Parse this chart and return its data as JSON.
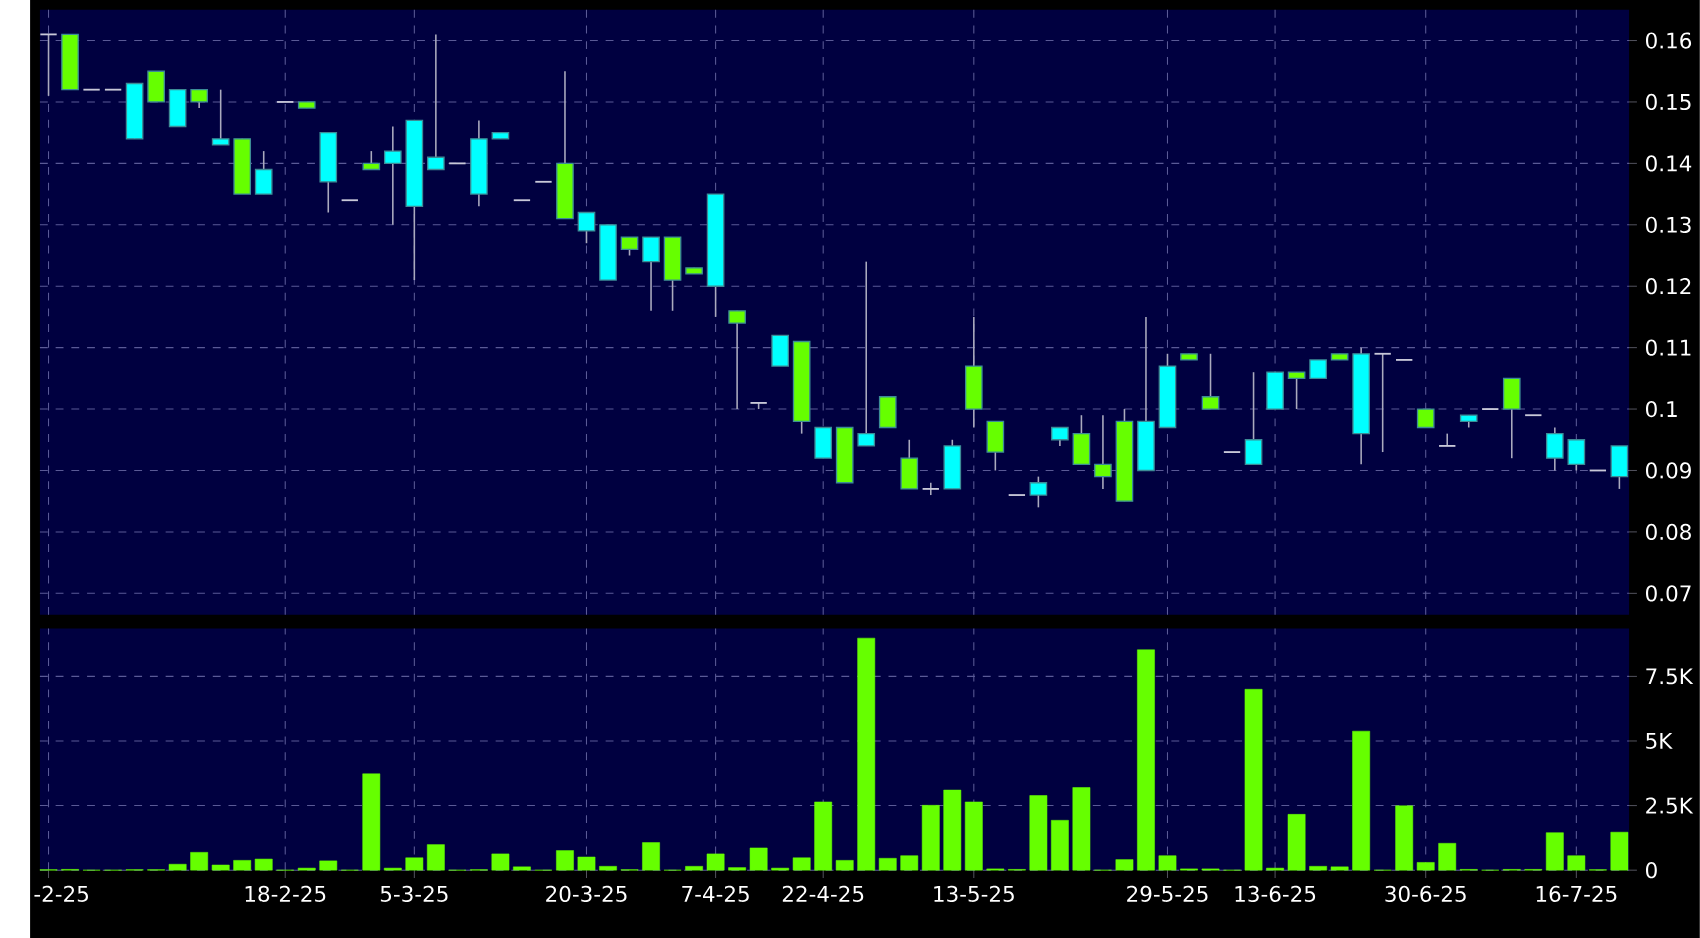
{
  "chart_data": [
    {
      "type": "candlestick",
      "tick_labels": "y",
      "grid": true,
      "categories": [
        null,
        null,
        null,
        null,
        null,
        null,
        null,
        null,
        null,
        null,
        null,
        null,
        null,
        null,
        null,
        null,
        null,
        null,
        null,
        null,
        null,
        null,
        null,
        null,
        null,
        null,
        null,
        null,
        null,
        null,
        null,
        null,
        null,
        null,
        null,
        null,
        null,
        null,
        null,
        null,
        null,
        null,
        null,
        null,
        null,
        null,
        null,
        null,
        null,
        null,
        null,
        null,
        null,
        null,
        null,
        null,
        null,
        null,
        null,
        null,
        null,
        null,
        null,
        null,
        null,
        null,
        null,
        null,
        null,
        null,
        null,
        null,
        null,
        null
      ],
      "ohlc": [
        [
          0.161,
          0.161,
          0.151,
          0.161
        ],
        [
          0.161,
          0.161,
          0.152,
          0.152
        ],
        [
          0.152,
          0.152,
          0.152,
          0.152
        ],
        [
          0.152,
          0.152,
          0.152,
          0.152
        ],
        [
          0.144,
          0.153,
          0.144,
          0.153
        ],
        [
          0.155,
          0.155,
          0.15,
          0.15
        ],
        [
          0.146,
          0.152,
          0.146,
          0.152
        ],
        [
          0.152,
          0.152,
          0.149,
          0.15
        ],
        [
          0.143,
          0.152,
          0.143,
          0.144
        ],
        [
          0.144,
          0.144,
          0.135,
          0.135
        ],
        [
          0.135,
          0.142,
          0.135,
          0.139
        ],
        [
          0.15,
          0.15,
          0.15,
          0.15
        ],
        [
          0.15,
          0.15,
          0.149,
          0.149
        ],
        [
          0.137,
          0.145,
          0.132,
          0.145
        ],
        [
          0.134,
          0.134,
          0.134,
          0.134
        ],
        [
          0.14,
          0.142,
          0.139,
          0.139
        ],
        [
          0.14,
          0.146,
          0.13,
          0.142
        ],
        [
          0.133,
          0.147,
          0.121,
          0.147
        ],
        [
          0.139,
          0.161,
          0.139,
          0.141
        ],
        [
          0.14,
          0.14,
          0.14,
          0.14
        ],
        [
          0.135,
          0.147,
          0.133,
          0.144
        ],
        [
          0.144,
          0.145,
          0.144,
          0.145
        ],
        [
          0.134,
          0.134,
          0.134,
          0.134
        ],
        [
          0.137,
          0.137,
          0.137,
          0.137
        ],
        [
          0.14,
          0.155,
          0.131,
          0.131
        ],
        [
          0.129,
          0.132,
          0.127,
          0.132
        ],
        [
          0.121,
          0.13,
          0.121,
          0.13
        ],
        [
          0.128,
          0.128,
          0.125,
          0.126
        ],
        [
          0.124,
          0.128,
          0.116,
          0.128
        ],
        [
          0.128,
          0.128,
          0.116,
          0.121
        ],
        [
          0.123,
          0.123,
          0.122,
          0.122
        ],
        [
          0.12,
          0.135,
          0.115,
          0.135
        ],
        [
          0.116,
          0.116,
          0.1,
          0.114
        ],
        [
          0.101,
          0.101,
          0.1,
          0.101
        ],
        [
          0.107,
          0.112,
          0.107,
          0.112
        ],
        [
          0.111,
          0.111,
          0.096,
          0.098
        ],
        [
          0.092,
          0.097,
          0.092,
          0.097
        ],
        [
          0.097,
          0.097,
          0.088,
          0.088
        ],
        [
          0.094,
          0.124,
          0.094,
          0.096
        ],
        [
          0.102,
          0.102,
          0.097,
          0.097
        ],
        [
          0.092,
          0.095,
          0.087,
          0.087
        ],
        [
          0.087,
          0.088,
          0.086,
          0.087
        ],
        [
          0.087,
          0.095,
          0.087,
          0.094
        ],
        [
          0.107,
          0.115,
          0.097,
          0.1
        ],
        [
          0.098,
          0.098,
          0.09,
          0.093
        ],
        [
          0.086,
          0.086,
          0.086,
          0.086
        ],
        [
          0.086,
          0.089,
          0.084,
          0.088
        ],
        [
          0.095,
          0.097,
          0.094,
          0.097
        ],
        [
          0.096,
          0.099,
          0.091,
          0.091
        ],
        [
          0.091,
          0.099,
          0.087,
          0.089
        ],
        [
          0.098,
          0.1,
          0.085,
          0.085
        ],
        [
          0.09,
          0.115,
          0.09,
          0.098
        ],
        [
          0.097,
          0.109,
          0.097,
          0.107
        ],
        [
          0.109,
          0.109,
          0.108,
          0.108
        ],
        [
          0.102,
          0.109,
          0.1,
          0.1
        ],
        [
          0.093,
          0.093,
          0.093,
          0.093
        ],
        [
          0.091,
          0.106,
          0.091,
          0.095
        ],
        [
          0.1,
          0.106,
          0.1,
          0.106
        ],
        [
          0.106,
          0.106,
          0.1,
          0.105
        ],
        [
          0.105,
          0.108,
          0.105,
          0.108
        ],
        [
          0.109,
          0.109,
          0.108,
          0.108
        ],
        [
          0.096,
          0.11,
          0.091,
          0.109
        ],
        [
          0.109,
          0.109,
          0.093,
          0.109
        ],
        [
          0.108,
          0.108,
          0.108,
          0.108
        ],
        [
          0.1,
          0.1,
          0.097,
          0.097
        ],
        [
          0.094,
          0.096,
          0.094,
          0.094
        ],
        [
          0.098,
          0.099,
          0.097,
          0.099
        ],
        [
          0.1,
          0.1,
          0.1,
          0.1
        ],
        [
          0.105,
          0.105,
          0.092,
          0.1
        ],
        [
          0.099,
          0.099,
          0.099,
          0.099
        ],
        [
          0.092,
          0.097,
          0.09,
          0.096
        ],
        [
          0.091,
          0.095,
          0.09,
          0.095
        ],
        [
          0.09,
          0.09,
          0.09,
          0.09
        ],
        [
          0.089,
          0.094,
          0.087,
          0.094
        ]
      ],
      "colors": [
        "#c8c8d8",
        "#66ff00",
        "#c8c8d8",
        "#c8c8d8",
        "#00ffff",
        "#66ff00",
        "#00ffff",
        "#66ff00",
        "#00ffff",
        "#66ff00",
        "#00ffff",
        "#c8c8d8",
        "#66ff00",
        "#00ffff",
        "#c8c8d8",
        "#66ff00",
        "#00ffff",
        "#00ffff",
        "#00ffff",
        "#c8c8d8",
        "#00ffff",
        "#00ffff",
        "#c8c8d8",
        "#c8c8d8",
        "#66ff00",
        "#00ffff",
        "#00ffff",
        "#66ff00",
        "#00ffff",
        "#66ff00",
        "#66ff00",
        "#00ffff",
        "#66ff00",
        "#c8c8d8",
        "#00ffff",
        "#66ff00",
        "#00ffff",
        "#66ff00",
        "#00ffff",
        "#66ff00",
        "#66ff00",
        "#c8c8d8",
        "#00ffff",
        "#66ff00",
        "#66ff00",
        "#c8c8d8",
        "#00ffff",
        "#00ffff",
        "#66ff00",
        "#66ff00",
        "#66ff00",
        "#00ffff",
        "#00ffff",
        "#66ff00",
        "#66ff00",
        "#c8c8d8",
        "#00ffff",
        "#00ffff",
        "#66ff00",
        "#00ffff",
        "#66ff00",
        "#00ffff",
        "#c8c8d8",
        "#c8c8d8",
        "#66ff00",
        "#c8c8d8",
        "#00ffff",
        "#c8c8d8",
        "#66ff00",
        "#c8c8d8",
        "#00ffff",
        "#00ffff",
        "#c8c8d8",
        "#00ffff"
      ],
      "ylim": [
        0.0665,
        0.165
      ],
      "yticks": [
        0.07,
        0.08,
        0.09,
        0.1,
        0.11,
        0.12,
        0.13,
        0.14,
        0.15,
        0.16
      ]
    },
    {
      "type": "bar",
      "grid": true,
      "color": "#66ff00",
      "categories": [
        "-2-25",
        null,
        null,
        null,
        null,
        null,
        null,
        null,
        null,
        null,
        null,
        "18-2-25",
        null,
        null,
        null,
        null,
        null,
        "5-3-25",
        null,
        null,
        null,
        null,
        null,
        null,
        null,
        "20-3-25",
        null,
        null,
        null,
        null,
        null,
        "7-4-25",
        null,
        null,
        null,
        null,
        "22-4-25",
        null,
        null,
        null,
        null,
        null,
        null,
        "13-5-25",
        null,
        null,
        null,
        null,
        null,
        null,
        null,
        null,
        "29-5-25",
        null,
        null,
        null,
        null,
        "13-6-25",
        null,
        null,
        null,
        null,
        null,
        null,
        "30-6-25",
        null,
        null,
        null,
        null,
        null,
        null,
        "16-7-25",
        null,
        null
      ],
      "values": [
        0.02,
        0.03,
        0,
        0,
        0.02,
        0.02,
        0.23,
        0.69,
        0.2,
        0.38,
        0.43,
        0,
        0.08,
        0.36,
        0,
        3.73,
        0.08,
        0.48,
        0.99,
        0,
        0.02,
        0.63,
        0.13,
        0,
        0.76,
        0.51,
        0.15,
        0.02,
        1.07,
        0,
        0.15,
        0.63,
        0.1,
        0.86,
        0.08,
        0.48,
        2.64,
        0.38,
        8.98,
        0.46,
        0.56,
        2.51,
        3.1,
        2.64,
        0.05,
        0.03,
        2.89,
        1.93,
        3.2,
        0,
        0.41,
        8.53,
        0.56,
        0.05,
        0.05,
        0,
        7.0,
        0.08,
        2.16,
        0.15,
        0.13,
        5.38,
        0,
        2.49,
        0.3,
        1.04,
        0.03,
        0,
        0.03,
        0.03,
        1.45,
        0.56,
        0.02,
        1.47
      ],
      "ylim": [
        0,
        9.35
      ],
      "yticks": [
        0,
        {
          "value": 2.5,
          "label": "2.5K"
        },
        {
          "value": 5,
          "label": "5K"
        },
        {
          "value": 7.5,
          "label": "7.5K"
        }
      ]
    }
  ]
}
